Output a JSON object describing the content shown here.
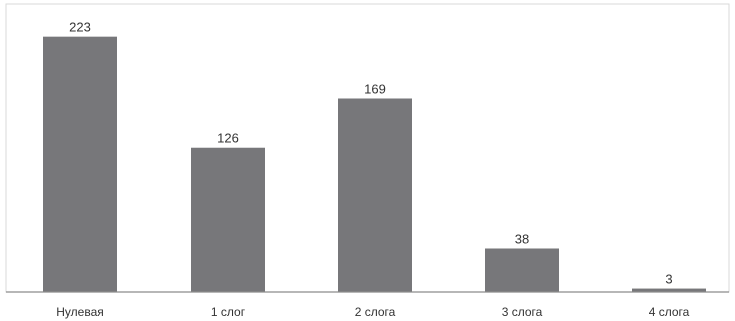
{
  "chart_data": {
    "type": "bar",
    "categories": [
      "Нулевая",
      "1 слог",
      "2 слога",
      "3 слога",
      "4 слога"
    ],
    "values": [
      223,
      126,
      169,
      38,
      3
    ],
    "title": "",
    "xlabel": "",
    "ylabel": "",
    "ylim": [
      0,
      230
    ],
    "grid": false,
    "legend": "none",
    "colors": {
      "bar": "#77777a",
      "axis": "#8c8c8c",
      "border": "#d9d9d9",
      "text": "#333333"
    }
  }
}
